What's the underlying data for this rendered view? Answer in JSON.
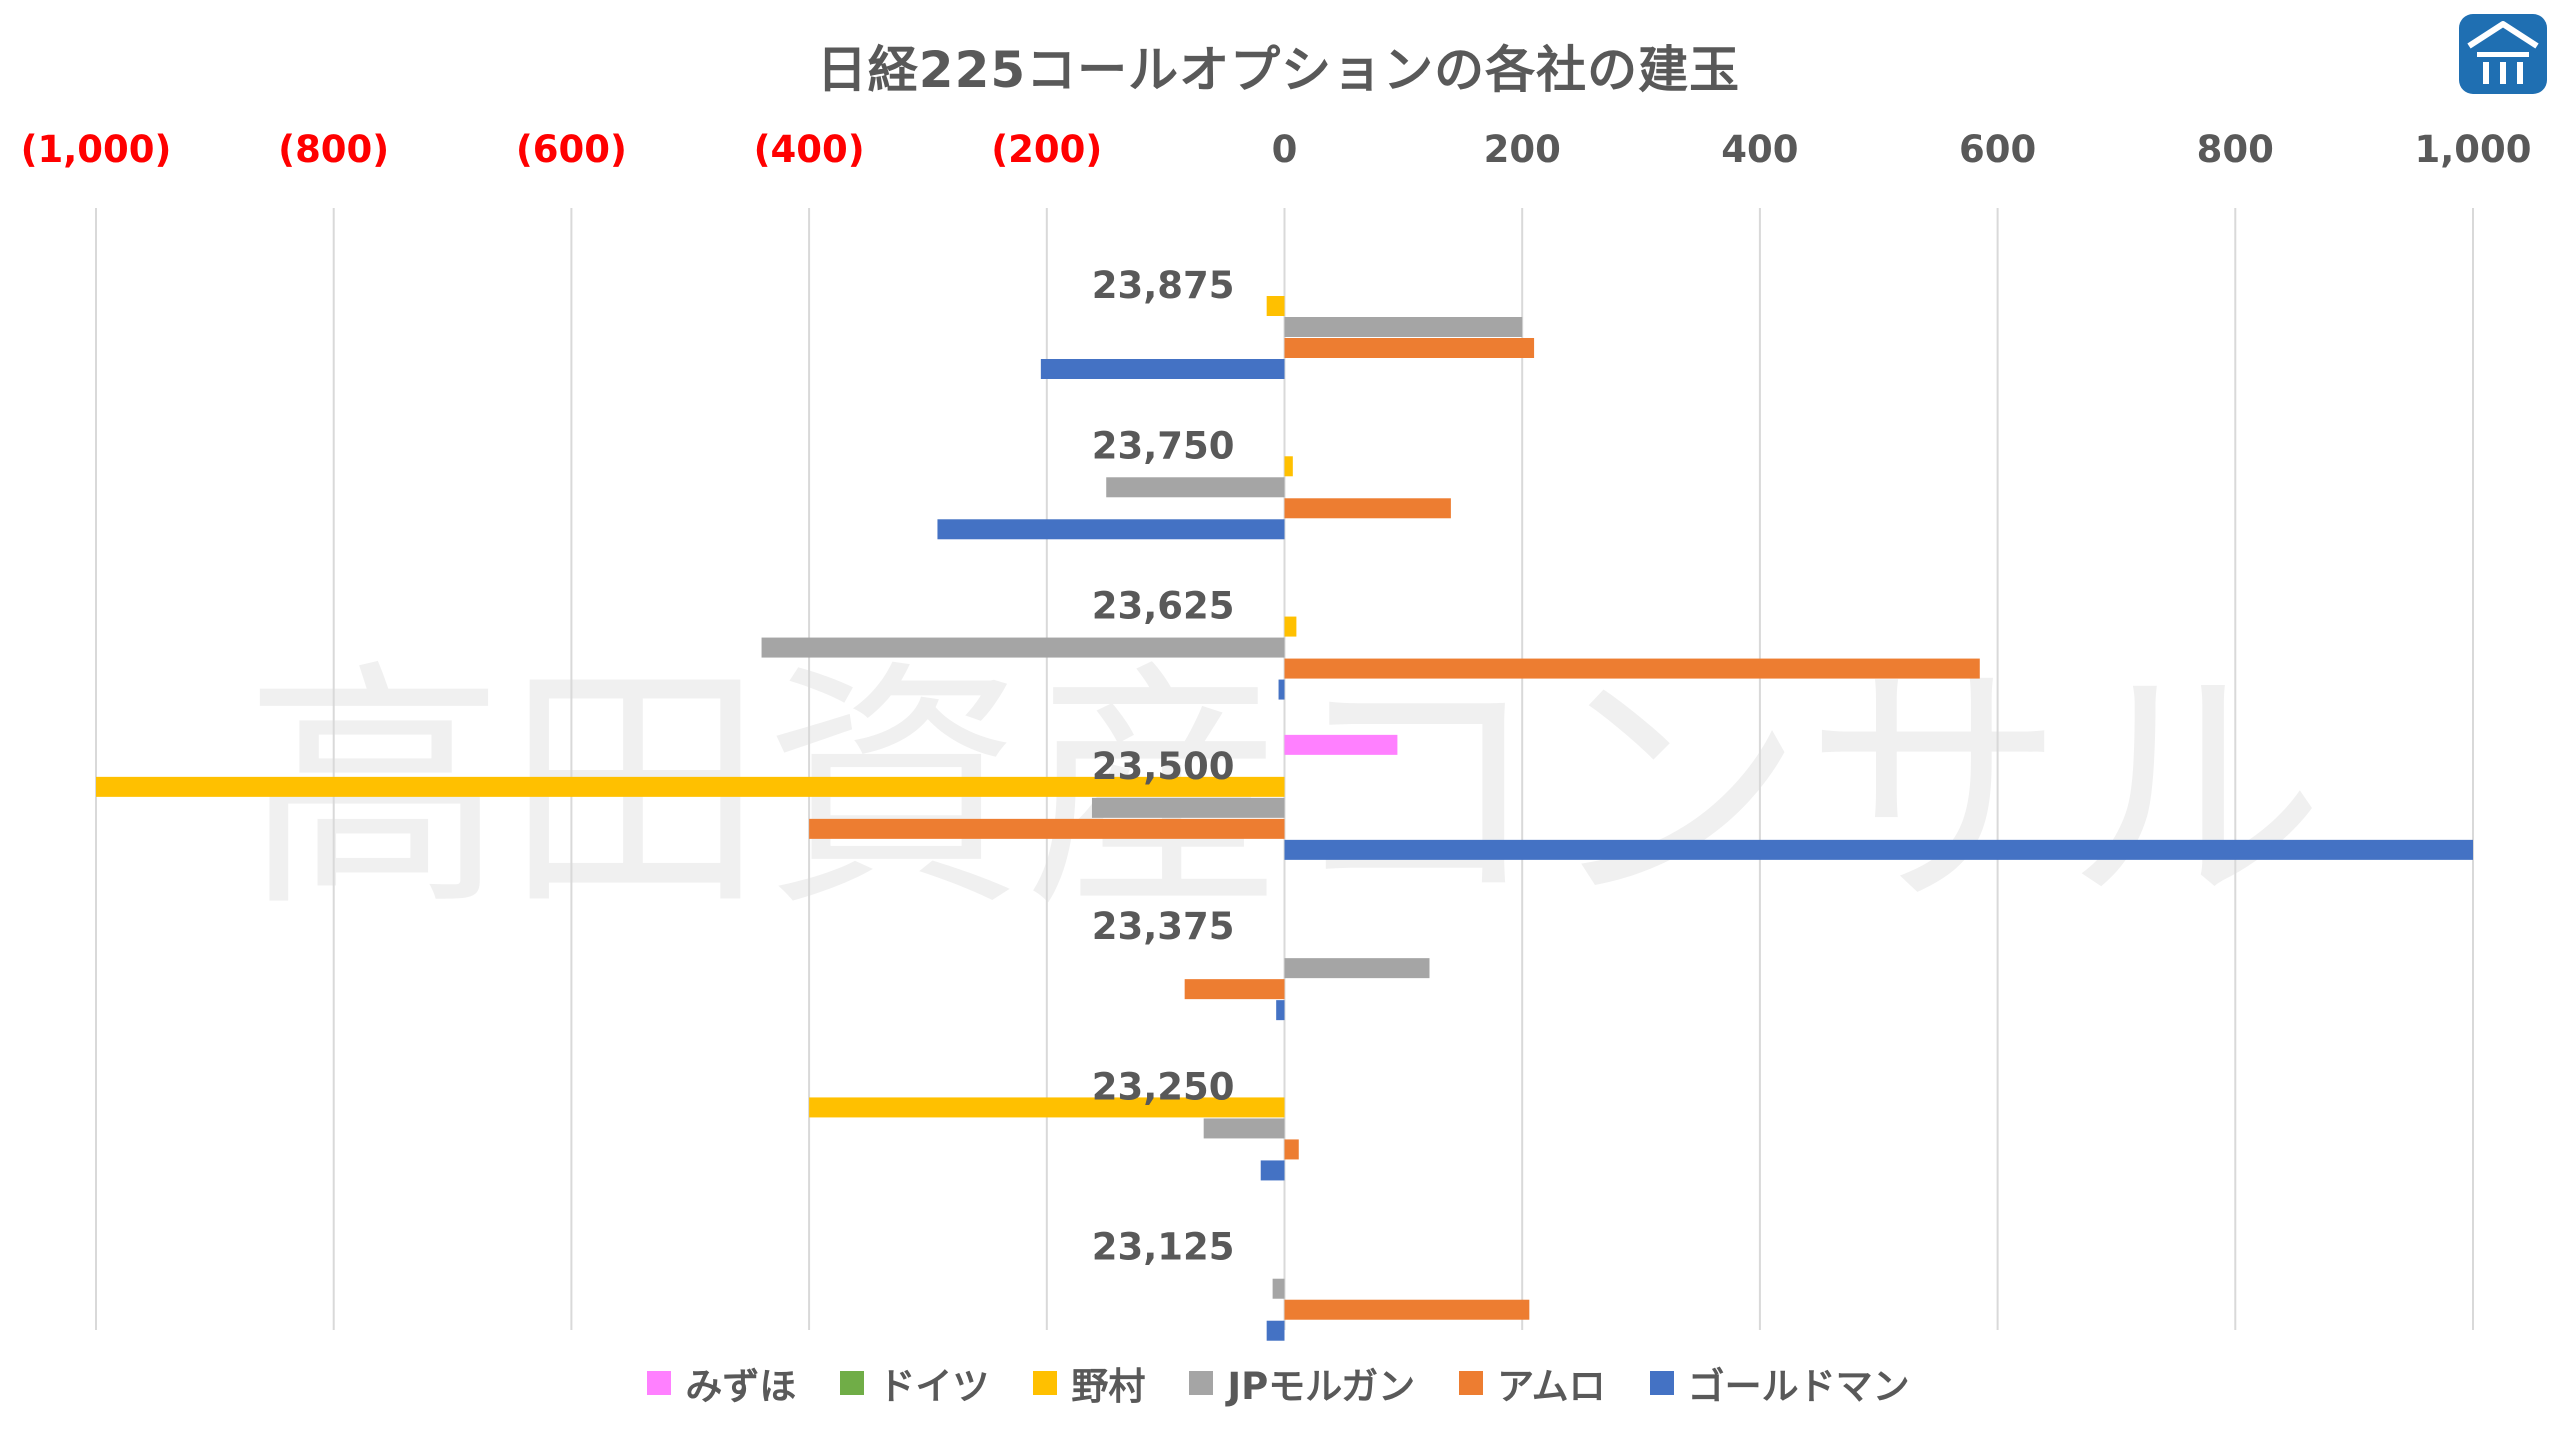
{
  "chart_data": {
    "type": "bar",
    "orientation": "horizontal",
    "title": "日経225コールオプションの各社の建玉",
    "watermark": "高田資産コンサル",
    "xlim": [
      -1000,
      1000
    ],
    "x_ticks": [
      {
        "value": -1000,
        "label": "(1,000)"
      },
      {
        "value": -800,
        "label": "(800)"
      },
      {
        "value": -600,
        "label": "(600)"
      },
      {
        "value": -400,
        "label": "(400)"
      },
      {
        "value": -200,
        "label": "(200)"
      },
      {
        "value": 0,
        "label": "0"
      },
      {
        "value": 200,
        "label": "200"
      },
      {
        "value": 400,
        "label": "400"
      },
      {
        "value": 600,
        "label": "600"
      },
      {
        "value": 800,
        "label": "800"
      },
      {
        "value": 1000,
        "label": "1,000"
      }
    ],
    "negative_tick_color": "#ff0000",
    "positive_tick_color": "#595959",
    "grid": true,
    "legend_position": "bottom",
    "categories": [
      "23,875",
      "23,750",
      "23,625",
      "23,500",
      "23,375",
      "23,250",
      "23,125"
    ],
    "series": [
      {
        "name": "みずほ",
        "color": "#ff80ff",
        "values": [
          0,
          0,
          0,
          95,
          0,
          0,
          0
        ]
      },
      {
        "name": "ドイツ",
        "color": "#70ad47",
        "values": [
          0,
          0,
          0,
          0,
          0,
          0,
          0
        ]
      },
      {
        "name": "野村",
        "color": "#ffc000",
        "values": [
          -15,
          7,
          10,
          -1000,
          0,
          -400,
          0
        ]
      },
      {
        "name": "JPモルガン",
        "color": "#a5a5a5",
        "values": [
          200,
          -150,
          -440,
          -162,
          122,
          -68,
          -10
        ]
      },
      {
        "name": "アムロ",
        "color": "#ed7d31",
        "values": [
          210,
          140,
          585,
          -400,
          -84,
          12,
          206
        ]
      },
      {
        "name": "ゴールドマン",
        "color": "#4472c4",
        "values": [
          -205,
          -292,
          -5,
          1000,
          -7,
          -20,
          -15
        ]
      }
    ]
  },
  "logo_icon": "takata-logo-icon"
}
